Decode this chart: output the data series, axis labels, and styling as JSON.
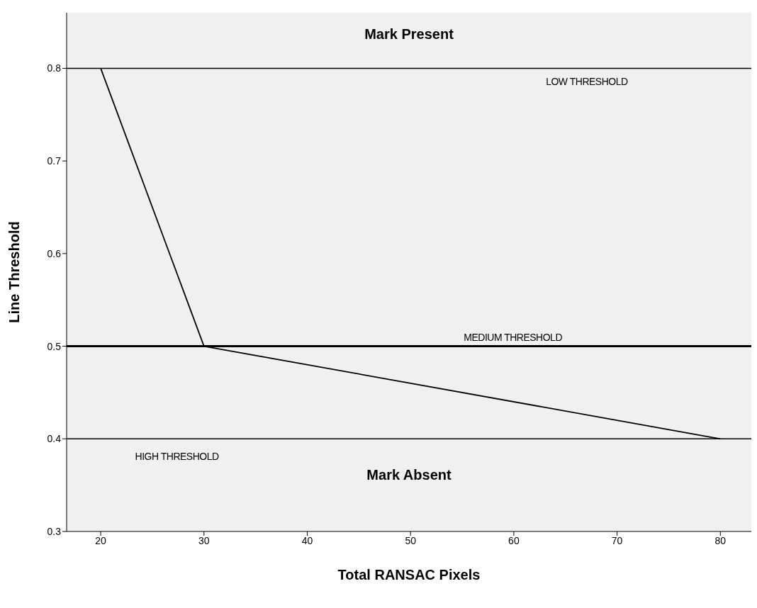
{
  "chart_data": {
    "type": "line",
    "xlabel": "Total RANSAC Pixels",
    "ylabel": "Line Threshold",
    "x": [
      20,
      30,
      80
    ],
    "series": [
      {
        "color": "#000000",
        "values": [
          0.8,
          0.5,
          0.4
        ]
      }
    ],
    "xlim": [
      16.7,
      83
    ],
    "xticks": [
      20,
      30,
      40,
      50,
      60,
      70,
      80
    ],
    "ylim": [
      0.3,
      0.86
    ],
    "yticks": [
      0.3,
      0.4,
      0.5,
      0.6,
      0.7,
      0.8
    ],
    "ref_lines": [
      {
        "axis": "y",
        "value": 0.8,
        "label": "LOW THRESHOLD"
      },
      {
        "axis": "y",
        "value": 0.5,
        "label": "MEDIUM THRESHOLD"
      },
      {
        "axis": "y",
        "value": 0.4,
        "label": "HIGH THRESHOLD"
      }
    ],
    "annotations": [
      "Mark Present",
      "Mark Absent"
    ],
    "grid": false,
    "legend": false,
    "marker": "none",
    "line_style": "solid"
  }
}
